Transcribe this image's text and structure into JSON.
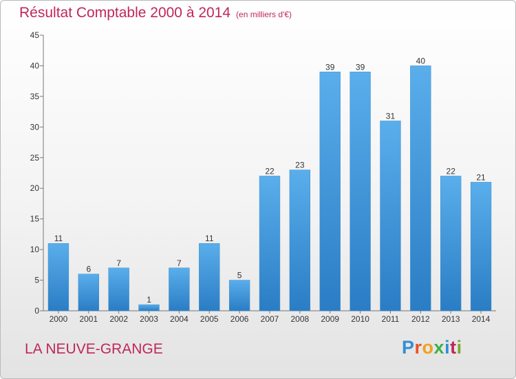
{
  "title": "Résultat Comptable 2000 à 2014",
  "subtitle": "(en milliers d'€)",
  "commune": "LA NEUVE-GRANGE",
  "logo": {
    "text": "Proxiti",
    "letter_colors": [
      "#2f8fd6",
      "#e8502a",
      "#f0a020",
      "#3cb04a",
      "#2f8fd6",
      "#c0265a",
      "#7aa82a"
    ]
  },
  "colors": {
    "bar": "#4ea3e2",
    "title": "#c0265a"
  },
  "chart_data": {
    "type": "bar",
    "title": "Résultat Comptable 2000 à 2014",
    "subtitle": "(en milliers d'€)",
    "categories": [
      "2000",
      "2001",
      "2002",
      "2003",
      "2004",
      "2005",
      "2006",
      "2007",
      "2008",
      "2009",
      "2010",
      "2011",
      "2012",
      "2013",
      "2014"
    ],
    "values": [
      11,
      6,
      7,
      1,
      7,
      11,
      5,
      22,
      23,
      39,
      39,
      31,
      40,
      22,
      21
    ],
    "ylim": [
      0,
      45
    ],
    "yticks": [
      0,
      5,
      10,
      15,
      20,
      25,
      30,
      35,
      40,
      45
    ],
    "grid": false,
    "data_labels": true
  }
}
